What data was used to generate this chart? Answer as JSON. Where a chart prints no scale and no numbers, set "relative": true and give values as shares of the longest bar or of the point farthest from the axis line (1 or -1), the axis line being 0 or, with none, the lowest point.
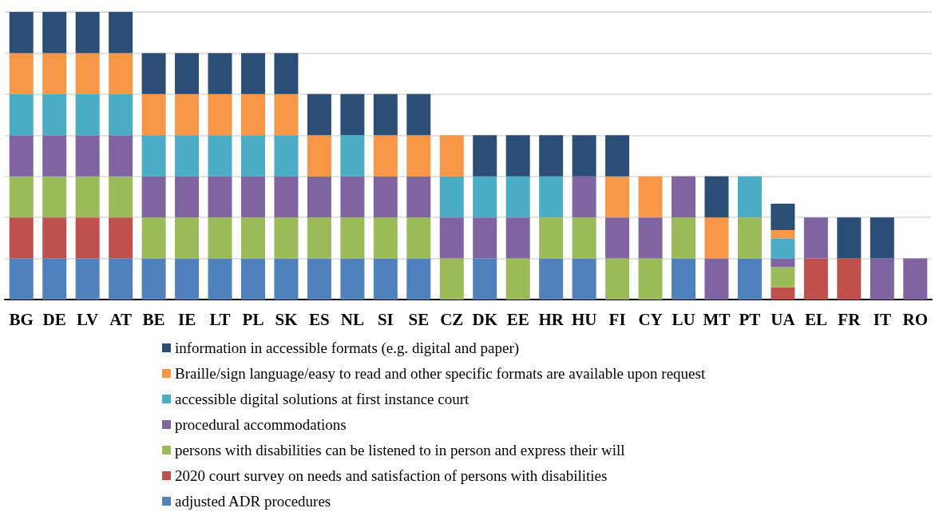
{
  "chart_data": {
    "type": "bar",
    "stacked": true,
    "relative": true,
    "grid": "y",
    "legend": "bottom",
    "categories": [
      "BG",
      "DE",
      "LV",
      "AT",
      "BE",
      "IE",
      "LT",
      "PL",
      "SK",
      "ES",
      "NL",
      "SI",
      "SE",
      "CZ",
      "DK",
      "EE",
      "HR",
      "HU",
      "FI",
      "CY",
      "LU",
      "MT",
      "PT",
      "UA",
      "EL",
      "FR",
      "IT",
      "RO"
    ],
    "series": [
      {
        "name": "adjusted ADR procedures",
        "color": "#4f81bd",
        "values": [
          0.142857,
          0.142857,
          0.142857,
          0.142857,
          0.142857,
          0.142857,
          0.142857,
          0.142857,
          0.142857,
          0.142857,
          0.142857,
          0.142857,
          0.142857,
          null,
          0.142857,
          null,
          0.142857,
          0.142857,
          null,
          null,
          0.142857,
          null,
          0.142857,
          null,
          null,
          null,
          null,
          null
        ]
      },
      {
        "name": "2020 court survey on needs and satisfaction of persons with disabilities",
        "color": "#c0504d",
        "values": [
          0.142857,
          0.142857,
          0.142857,
          0.142857,
          null,
          null,
          null,
          null,
          null,
          null,
          null,
          null,
          null,
          null,
          null,
          null,
          null,
          null,
          null,
          null,
          null,
          null,
          null,
          0.042,
          0.142857,
          0.142857,
          null,
          null
        ]
      },
      {
        "name": "persons with disabilities can be listened to in person and express their will",
        "color": "#9bbb59",
        "values": [
          0.142857,
          0.142857,
          0.142857,
          0.142857,
          0.142857,
          0.142857,
          0.142857,
          0.142857,
          0.142857,
          0.142857,
          0.142857,
          0.142857,
          0.142857,
          0.142857,
          null,
          0.142857,
          0.142857,
          0.142857,
          0.142857,
          0.142857,
          0.142857,
          null,
          0.142857,
          0.071,
          null,
          null,
          null,
          null
        ]
      },
      {
        "name": "procedural accommodations",
        "color": "#8064a2",
        "values": [
          0.142857,
          0.142857,
          0.142857,
          0.142857,
          0.142857,
          0.142857,
          0.142857,
          0.142857,
          0.142857,
          0.142857,
          0.142857,
          0.142857,
          0.142857,
          0.142857,
          0.142857,
          0.142857,
          null,
          0.142857,
          0.142857,
          0.142857,
          0.142857,
          0.142857,
          null,
          0.029,
          0.142857,
          null,
          0.142857,
          0.142857
        ]
      },
      {
        "name": "accessible digital solutions at first instance court",
        "color": "#4bacc6",
        "values": [
          0.142857,
          0.142857,
          0.142857,
          0.142857,
          0.142857,
          0.142857,
          0.142857,
          0.142857,
          0.142857,
          null,
          0.142857,
          null,
          null,
          0.142857,
          0.142857,
          0.142857,
          0.142857,
          null,
          null,
          null,
          null,
          null,
          0.142857,
          0.071,
          null,
          null,
          null,
          null
        ]
      },
      {
        "name": "Braille/sign language/easy to read and other specific formats are available upon request",
        "color": "#f79646",
        "values": [
          0.142857,
          0.142857,
          0.142857,
          0.142857,
          0.142857,
          0.142857,
          0.142857,
          0.142857,
          0.142857,
          0.142857,
          null,
          0.142857,
          0.142857,
          0.142857,
          null,
          null,
          null,
          null,
          0.142857,
          0.142857,
          null,
          0.142857,
          null,
          0.029,
          null,
          null,
          null,
          null
        ]
      },
      {
        "name": "information in accessible formats (e.g. digital and paper)",
        "color": "#2c4d75",
        "values": [
          0.142857,
          0.142857,
          0.142857,
          0.142857,
          0.142857,
          0.142857,
          0.142857,
          0.142857,
          0.142857,
          0.142857,
          0.142857,
          0.142857,
          0.142857,
          null,
          0.142857,
          0.142857,
          0.142857,
          0.142857,
          0.142857,
          null,
          null,
          0.142857,
          null,
          0.091,
          null,
          0.142857,
          0.142857,
          null
        ]
      }
    ]
  }
}
